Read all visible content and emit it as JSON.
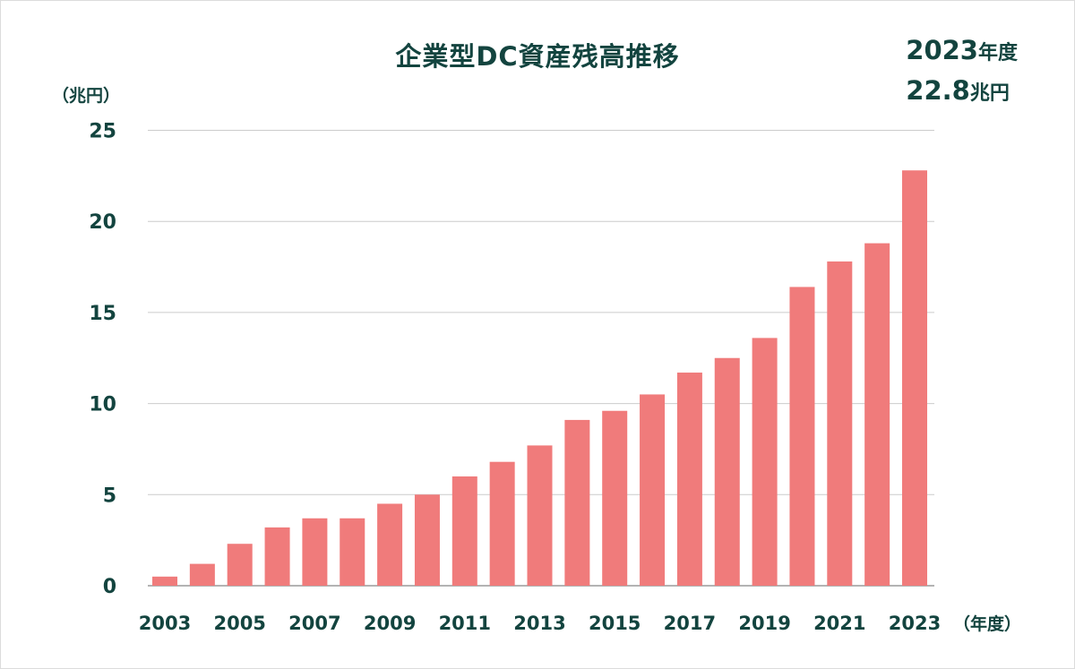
{
  "chart_data": {
    "type": "bar",
    "title": "企業型DC資産残高推移",
    "ylabel": "（兆円）",
    "xlabel": "（年度）",
    "ylim": [
      0,
      25
    ],
    "yticks": [
      "0",
      "5",
      "10",
      "15",
      "20",
      "25"
    ],
    "grid": true,
    "categories": [
      "2003",
      "2004",
      "2005",
      "2006",
      "2007",
      "2008",
      "2009",
      "2010",
      "2011",
      "2012",
      "2013",
      "2014",
      "2015",
      "2016",
      "2017",
      "2018",
      "2019",
      "2020",
      "2021",
      "2022",
      "2023"
    ],
    "xtick_labels": [
      "2003",
      "",
      "2005",
      "",
      "2007",
      "",
      "2009",
      "",
      "2011",
      "",
      "2013",
      "",
      "2015",
      "",
      "2017",
      "",
      "2019",
      "",
      "2021",
      "",
      "2023"
    ],
    "values": [
      0.5,
      1.2,
      2.3,
      3.2,
      3.7,
      3.7,
      4.5,
      5.0,
      6.0,
      6.8,
      7.7,
      9.1,
      9.6,
      10.5,
      11.7,
      12.5,
      13.6,
      16.4,
      17.8,
      18.8,
      22.8
    ],
    "bar_color": "#f07b7b",
    "grid_color": "#cccccc",
    "text_color": "#13443f",
    "annotation": {
      "year_num": "2023",
      "year_unit": "年度",
      "value_num": "22.8",
      "value_unit": "兆円"
    }
  }
}
